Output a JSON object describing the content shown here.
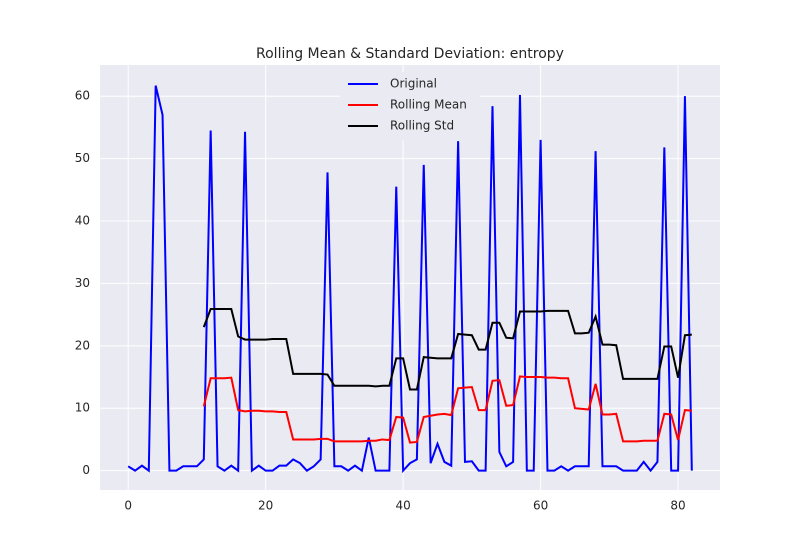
{
  "chart_data": {
    "type": "line",
    "title": "Rolling Mean & Standard Deviation: entropy",
    "x": [
      0,
      1,
      2,
      3,
      4,
      5,
      6,
      7,
      8,
      9,
      10,
      11,
      12,
      13,
      14,
      15,
      16,
      17,
      18,
      19,
      20,
      21,
      22,
      23,
      24,
      25,
      26,
      27,
      28,
      29,
      30,
      31,
      32,
      33,
      34,
      35,
      36,
      37,
      38,
      39,
      40,
      41,
      42,
      43,
      44,
      45,
      46,
      47,
      48,
      49,
      50,
      51,
      52,
      53,
      54,
      55,
      56,
      57,
      58,
      59,
      60,
      61,
      62,
      63,
      64,
      65,
      66,
      67,
      68,
      69,
      70,
      71,
      72,
      73,
      74,
      75,
      76,
      77,
      78,
      79,
      80,
      81,
      82
    ],
    "series": [
      {
        "name": "Original",
        "color": "#0000ff",
        "values": [
          0.7,
          0,
          0.8,
          0,
          61.7,
          57,
          0,
          0,
          0.7,
          0.7,
          0.7,
          1.8,
          54.5,
          0.7,
          0,
          0.8,
          0,
          54.3,
          0,
          0.8,
          0,
          0,
          0.8,
          0.8,
          1.8,
          1.2,
          0,
          0.7,
          1.8,
          47.8,
          0.7,
          0.7,
          0,
          0.8,
          0,
          5.3,
          0,
          0,
          0,
          45.5,
          0,
          1.2,
          1.8,
          49,
          1.2,
          4.3,
          1.4,
          0.8,
          52.8,
          1.4,
          1.5,
          0,
          0,
          58.4,
          3,
          0.7,
          1.4,
          60.2,
          0,
          0,
          53,
          0,
          0,
          0.7,
          0,
          0.7,
          0.7,
          0.7,
          51.2,
          0.7,
          0.7,
          0.7,
          0,
          0,
          0,
          1.4,
          0,
          1.4,
          51.8,
          0,
          0,
          60,
          0
        ]
      },
      {
        "name": "Rolling Mean",
        "color": "#ff0000",
        "values": [
          null,
          null,
          null,
          null,
          null,
          null,
          null,
          null,
          null,
          null,
          null,
          10.3,
          14.8,
          14.8,
          14.8,
          14.9,
          9.7,
          9.5,
          9.6,
          9.6,
          9.5,
          9.5,
          9.4,
          9.4,
          5,
          5,
          5,
          5,
          5.1,
          5.1,
          4.7,
          4.7,
          4.7,
          4.7,
          4.7,
          4.8,
          4.8,
          5,
          4.9,
          8.6,
          8.5,
          4.5,
          4.6,
          8.6,
          8.8,
          9.0,
          9.1,
          8.9,
          13.2,
          13.3,
          13.4,
          9.7,
          9.7,
          14.4,
          14.5,
          10.4,
          10.5,
          15.1,
          15,
          15,
          15,
          14.9,
          14.9,
          14.8,
          14.8,
          10,
          9.9,
          9.8,
          13.9,
          9,
          9,
          9.1,
          4.7,
          4.7,
          4.7,
          4.8,
          4.8,
          4.8,
          9.1,
          9.0,
          4.9,
          9.7,
          9.6
        ]
      },
      {
        "name": "Rolling Std",
        "color": "#000000",
        "values": [
          null,
          null,
          null,
          null,
          null,
          null,
          null,
          null,
          null,
          null,
          null,
          23,
          25.9,
          25.9,
          25.9,
          25.9,
          21.5,
          21,
          21,
          21,
          21,
          21.1,
          21.1,
          21.1,
          15.5,
          15.5,
          15.5,
          15.5,
          15.5,
          15.4,
          13.6,
          13.6,
          13.6,
          13.6,
          13.6,
          13.6,
          13.5,
          13.6,
          13.6,
          18,
          18,
          13,
          13,
          18.2,
          18.1,
          18,
          18,
          18,
          21.9,
          21.8,
          21.7,
          19.4,
          19.4,
          23.7,
          23.7,
          21.3,
          21.2,
          25.5,
          25.5,
          25.5,
          25.5,
          25.6,
          25.6,
          25.6,
          25.6,
          22,
          22,
          22.1,
          24.7,
          20.2,
          20.2,
          20.1,
          14.7,
          14.7,
          14.7,
          14.7,
          14.7,
          14.7,
          19.9,
          19.9,
          14.9,
          21.7,
          21.8
        ]
      }
    ],
    "xlim": [
      -4.1,
      86.1
    ],
    "ylim": [
      -3.1,
      65
    ],
    "xticks": [
      0,
      20,
      40,
      60,
      80
    ],
    "yticks": [
      0,
      10,
      20,
      30,
      40,
      50,
      60
    ],
    "grid": true,
    "legend": "upper center"
  }
}
